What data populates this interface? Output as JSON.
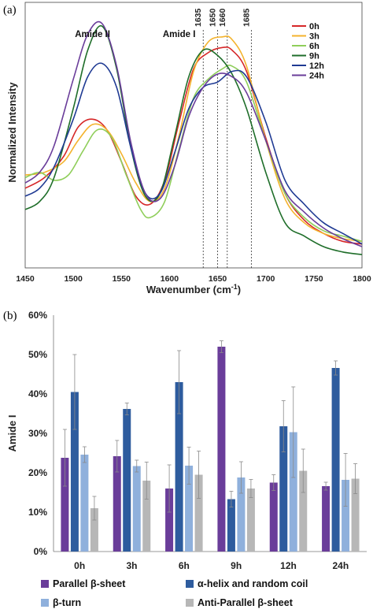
{
  "chart_data": [
    {
      "type": "line",
      "panel_label": "(a)",
      "xlabel": "Wavenumber (cm",
      "xlabel_sup": "-1",
      "xlabel_tail": ")",
      "ylabel": "Normalized Intensity",
      "xlim": [
        1450,
        1800
      ],
      "xticks": [
        "1450",
        "1500",
        "1550",
        "1600",
        "1650",
        "1700",
        "1750",
        "1800"
      ],
      "ylim": [
        0,
        1
      ],
      "legend_position": "top-right",
      "annotations": [
        {
          "text": "Amide II",
          "x": 1520,
          "y": 0.87
        },
        {
          "text": "Amide I",
          "x": 1610,
          "y": 0.87
        }
      ],
      "reference_lines": [
        {
          "label": "1635",
          "x": 1635
        },
        {
          "label": "1650",
          "x": 1650
        },
        {
          "label": "1660",
          "x": 1660
        },
        {
          "label": "1685",
          "x": 1685
        }
      ],
      "series": [
        {
          "name": "0h",
          "color": "#d62728",
          "x": [
            1450,
            1470,
            1490,
            1505,
            1520,
            1535,
            1550,
            1565,
            1580,
            1595,
            1610,
            1625,
            1640,
            1655,
            1665,
            1680,
            1700,
            1720,
            1740,
            1760,
            1780,
            1800
          ],
          "y": [
            0.3,
            0.34,
            0.42,
            0.53,
            0.56,
            0.52,
            0.4,
            0.27,
            0.24,
            0.33,
            0.55,
            0.75,
            0.81,
            0.83,
            0.82,
            0.74,
            0.49,
            0.28,
            0.18,
            0.13,
            0.1,
            0.09
          ]
        },
        {
          "name": "3h",
          "color": "#f4b32d",
          "x": [
            1450,
            1470,
            1490,
            1505,
            1520,
            1535,
            1550,
            1565,
            1580,
            1595,
            1610,
            1625,
            1640,
            1655,
            1665,
            1680,
            1700,
            1720,
            1740,
            1760,
            1780,
            1800
          ],
          "y": [
            0.35,
            0.36,
            0.4,
            0.48,
            0.54,
            0.52,
            0.43,
            0.32,
            0.25,
            0.3,
            0.5,
            0.74,
            0.85,
            0.87,
            0.86,
            0.76,
            0.48,
            0.26,
            0.17,
            0.13,
            0.11,
            0.1
          ]
        },
        {
          "name": "6h",
          "color": "#8fce5a",
          "x": [
            1450,
            1465,
            1480,
            1495,
            1510,
            1525,
            1540,
            1555,
            1570,
            1580,
            1595,
            1610,
            1625,
            1640,
            1655,
            1665,
            1680,
            1700,
            1720,
            1740,
            1760,
            1780,
            1800
          ],
          "y": [
            0.34,
            0.36,
            0.33,
            0.35,
            0.44,
            0.52,
            0.49,
            0.35,
            0.22,
            0.19,
            0.25,
            0.45,
            0.64,
            0.71,
            0.75,
            0.76,
            0.7,
            0.48,
            0.28,
            0.19,
            0.14,
            0.12,
            0.1
          ]
        },
        {
          "name": "9h",
          "color": "#1f6e2a",
          "x": [
            1450,
            1465,
            1480,
            1500,
            1515,
            1530,
            1545,
            1560,
            1575,
            1590,
            1605,
            1620,
            1635,
            1650,
            1665,
            1680,
            1700,
            1720,
            1740,
            1760,
            1780,
            1800
          ],
          "y": [
            0.22,
            0.25,
            0.34,
            0.6,
            0.82,
            0.91,
            0.75,
            0.45,
            0.27,
            0.28,
            0.49,
            0.72,
            0.82,
            0.8,
            0.73,
            0.6,
            0.36,
            0.17,
            0.12,
            0.08,
            0.06,
            0.05
          ]
        },
        {
          "name": "12h",
          "color": "#1f3a93",
          "x": [
            1450,
            1465,
            1480,
            1500,
            1515,
            1530,
            1545,
            1560,
            1575,
            1590,
            1605,
            1620,
            1635,
            1650,
            1665,
            1680,
            1700,
            1720,
            1740,
            1760,
            1780,
            1800
          ],
          "y": [
            0.27,
            0.3,
            0.38,
            0.56,
            0.72,
            0.77,
            0.68,
            0.45,
            0.28,
            0.28,
            0.43,
            0.6,
            0.68,
            0.7,
            0.74,
            0.72,
            0.55,
            0.33,
            0.24,
            0.17,
            0.13,
            0.09
          ]
        },
        {
          "name": "24h",
          "color": "#6a3d9a",
          "x": [
            1450,
            1465,
            1480,
            1500,
            1515,
            1530,
            1545,
            1560,
            1575,
            1590,
            1605,
            1620,
            1635,
            1650,
            1665,
            1680,
            1700,
            1720,
            1740,
            1760,
            1780,
            1800
          ],
          "y": [
            0.32,
            0.36,
            0.46,
            0.71,
            0.88,
            0.92,
            0.76,
            0.47,
            0.28,
            0.26,
            0.38,
            0.57,
            0.68,
            0.73,
            0.72,
            0.66,
            0.48,
            0.29,
            0.21,
            0.15,
            0.11,
            0.08
          ]
        }
      ]
    },
    {
      "type": "bar",
      "panel_label": "(b)",
      "ylabel": "Amide I",
      "ylim": [
        0,
        60
      ],
      "yticks": [
        "0%",
        "10%",
        "20%",
        "30%",
        "40%",
        "50%",
        "60%"
      ],
      "categories": [
        "0h",
        "3h",
        "6h",
        "9h",
        "12h",
        "24h"
      ],
      "grid": false,
      "legend_position": "bottom",
      "series": [
        {
          "name": "Parallel β-sheet",
          "color": "#6a3d9a",
          "values": [
            23.8,
            24.2,
            16.0,
            52.0,
            17.5,
            16.6
          ],
          "errors": [
            7.2,
            4.0,
            6.0,
            1.5,
            2.0,
            1.0
          ]
        },
        {
          "name": "α-helix and random coil",
          "color": "#2e5c9e",
          "values": [
            40.5,
            36.2,
            43.0,
            13.3,
            31.8,
            46.6
          ],
          "errors": [
            9.5,
            1.5,
            8.0,
            2.0,
            6.5,
            1.8
          ]
        },
        {
          "name": "β-turn",
          "color": "#8fb0dc",
          "values": [
            24.6,
            21.7,
            21.8,
            18.8,
            30.3,
            18.2
          ],
          "errors": [
            2.0,
            1.5,
            4.7,
            4.0,
            11.5,
            6.7
          ]
        },
        {
          "name": "Anti-Parallel β-sheet",
          "color": "#b7b7b7",
          "values": [
            11.0,
            18.0,
            19.5,
            16.0,
            20.5,
            18.5
          ],
          "errors": [
            3.0,
            4.7,
            6.0,
            2.3,
            5.5,
            3.8
          ]
        }
      ]
    }
  ]
}
